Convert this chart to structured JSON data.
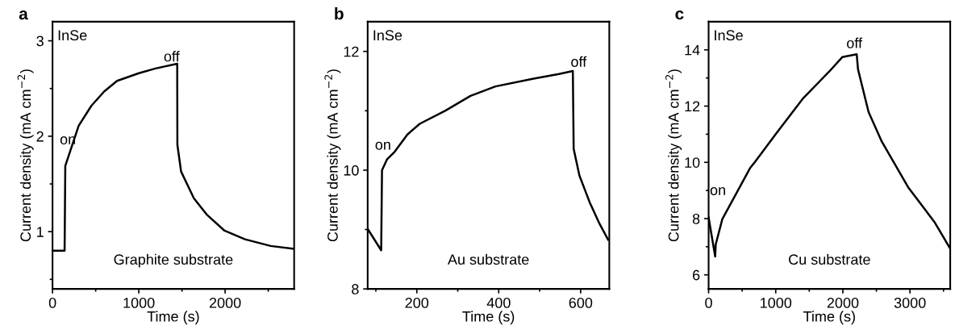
{
  "chart_data": [
    {
      "type": "line",
      "title": "a",
      "xlabel": "Time (s)",
      "ylabel": "Current density (mA cm$^{−2}$)",
      "xlim": [
        0,
        2800
      ],
      "ylim": [
        0.4,
        3.2
      ],
      "xticks": [
        0,
        {
          "value": 500,
          "label": null
        },
        1000,
        {
          "value": 1500,
          "label": null
        },
        2000,
        {
          "value": 2500,
          "label": null
        }
      ],
      "yticks": [
        {
          "value": 0.5,
          "label": null
        },
        1,
        {
          "value": 1.5,
          "label": null
        },
        2,
        {
          "value": 2.5,
          "label": null
        },
        3
      ],
      "grid": false,
      "legend": false,
      "marker": "none",
      "line_style": "solid",
      "annotations": [
        "InSe",
        "on",
        "off",
        "Graphite substrate"
      ],
      "series": [
        {
          "color": "#000000",
          "x": [
            0,
            140,
            148,
            303,
            451,
            600,
            748,
            1000,
            1193,
            1445,
            1447,
            1490,
            1638,
            1786,
            1994,
            2231,
            2528,
            2800
          ],
          "values": [
            0.8,
            0.8,
            1.69,
            2.11,
            2.32,
            2.47,
            2.58,
            2.66,
            2.71,
            2.76,
            1.91,
            1.63,
            1.35,
            1.18,
            1.01,
            0.92,
            0.85,
            0.82
          ]
        }
      ]
    },
    {
      "type": "line",
      "title": "b",
      "xlabel": "Time (s)",
      "ylabel": "Current density (mA cm$^{−2}$)",
      "xlim": [
        80,
        670
      ],
      "ylim": [
        8,
        12.5
      ],
      "xticks": [
        {
          "value": 100,
          "label": null
        },
        200,
        {
          "value": 300,
          "label": null
        },
        400,
        {
          "value": 500,
          "label": null
        },
        600
      ],
      "yticks": [
        8,
        {
          "value": 9,
          "label": null
        },
        10,
        {
          "value": 11,
          "label": null
        },
        12
      ],
      "grid": false,
      "legend": false,
      "marker": "none",
      "line_style": "solid",
      "annotations": [
        "InSe",
        "on",
        "off",
        "Au substrate"
      ],
      "series": [
        {
          "color": "#000000",
          "x": [
            80,
            113,
            115,
            127,
            146,
            177,
            207,
            269,
            331,
            392,
            485,
            547,
            581,
            583,
            597,
            622,
            646,
            667
          ],
          "values": [
            9.01,
            8.65,
            10.0,
            10.18,
            10.31,
            10.6,
            10.78,
            11.0,
            11.25,
            11.41,
            11.54,
            11.62,
            11.67,
            10.36,
            9.91,
            9.46,
            9.1,
            8.83
          ]
        }
      ]
    },
    {
      "type": "line",
      "title": "c",
      "xlabel": "Time (s)",
      "ylabel": "Current density (mA cm$^{−2}$)",
      "xlim": [
        0,
        3600
      ],
      "ylim": [
        5.5,
        15
      ],
      "xticks": [
        0,
        {
          "value": 500,
          "label": null
        },
        1000,
        {
          "value": 1500,
          "label": null
        },
        2000,
        {
          "value": 2500,
          "label": null
        },
        3000,
        {
          "value": 3500,
          "label": null
        }
      ],
      "yticks": [
        6,
        {
          "value": 7,
          "label": null
        },
        8,
        {
          "value": 9,
          "label": null
        },
        10,
        {
          "value": 11,
          "label": null
        },
        12,
        {
          "value": 13,
          "label": null
        },
        14
      ],
      "grid": false,
      "legend": false,
      "marker": "none",
      "line_style": "solid",
      "annotations": [
        "InSe",
        "on",
        "off",
        "Cu substrate"
      ],
      "series": [
        {
          "color": "#000000",
          "x": [
            0,
            98,
            106,
            204,
            420,
            616,
            695,
            1009,
            1402,
            1794,
            1991,
            2207,
            2226,
            2383,
            2580,
            2972,
            3365,
            3600
          ],
          "values": [
            8.04,
            6.65,
            7.08,
            7.98,
            8.93,
            9.79,
            10.03,
            11.03,
            12.26,
            13.22,
            13.74,
            13.84,
            13.31,
            11.79,
            10.74,
            9.12,
            7.88,
            6.93
          ]
        }
      ]
    }
  ]
}
